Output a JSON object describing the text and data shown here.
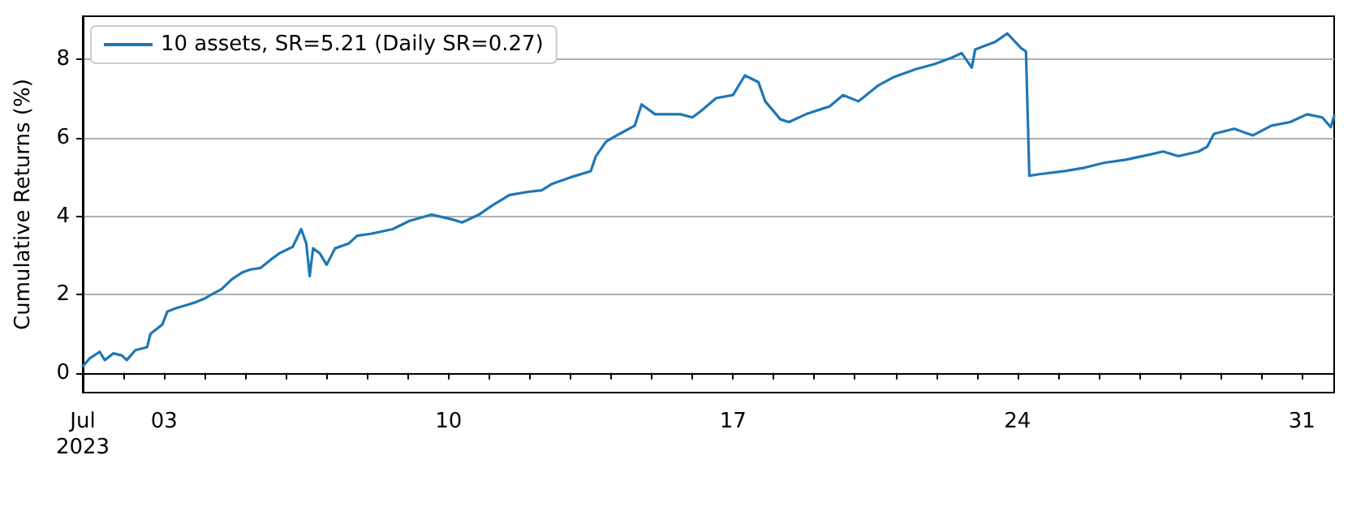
{
  "chart_data": {
    "type": "line",
    "ylabel": "Cumulative Returns (%)",
    "xlim": [
      "2023-07-01",
      "2023-07-31T19:00"
    ],
    "xticks": [
      {
        "value": "2023-07-01",
        "label": "Jul\n2023"
      },
      {
        "value": "2023-07-02",
        "label": null
      },
      {
        "value": "2023-07-03",
        "label": "03"
      },
      {
        "value": "2023-07-04",
        "label": null
      },
      {
        "value": "2023-07-05",
        "label": null
      },
      {
        "value": "2023-07-06",
        "label": null
      },
      {
        "value": "2023-07-07",
        "label": null
      },
      {
        "value": "2023-07-08",
        "label": null
      },
      {
        "value": "2023-07-09",
        "label": null
      },
      {
        "value": "2023-07-10",
        "label": "10"
      },
      {
        "value": "2023-07-11",
        "label": null
      },
      {
        "value": "2023-07-12",
        "label": null
      },
      {
        "value": "2023-07-13",
        "label": null
      },
      {
        "value": "2023-07-14",
        "label": null
      },
      {
        "value": "2023-07-15",
        "label": null
      },
      {
        "value": "2023-07-16",
        "label": null
      },
      {
        "value": "2023-07-17",
        "label": "17"
      },
      {
        "value": "2023-07-18",
        "label": null
      },
      {
        "value": "2023-07-19",
        "label": null
      },
      {
        "value": "2023-07-20",
        "label": null
      },
      {
        "value": "2023-07-21",
        "label": null
      },
      {
        "value": "2023-07-22",
        "label": null
      },
      {
        "value": "2023-07-23",
        "label": null
      },
      {
        "value": "2023-07-24",
        "label": "24"
      },
      {
        "value": "2023-07-25",
        "label": null
      },
      {
        "value": "2023-07-26",
        "label": null
      },
      {
        "value": "2023-07-27",
        "label": null
      },
      {
        "value": "2023-07-28",
        "label": null
      },
      {
        "value": "2023-07-29",
        "label": null
      },
      {
        "value": "2023-07-30",
        "label": null
      },
      {
        "value": "2023-07-31",
        "label": "31"
      }
    ],
    "ylim": [
      -0.5,
      9.1
    ],
    "yticks": [
      0,
      2,
      4,
      6,
      8
    ],
    "grid": "y",
    "legend": "top left",
    "marker": "none",
    "line_style": "solid",
    "x": [
      "2023-07-01T00:00",
      "2023-07-01T04:00",
      "2023-07-01T10:00",
      "2023-07-01T13:00",
      "2023-07-01T18:00",
      "2023-07-01T23:00",
      "2023-07-02T02:00",
      "2023-07-02T07:00",
      "2023-07-02T14:00",
      "2023-07-02T16:00",
      "2023-07-02T23:00",
      "2023-07-03T02:00",
      "2023-07-03T07:00",
      "2023-07-03T13:00",
      "2023-07-03T19:00",
      "2023-07-04T00:00",
      "2023-07-04T04:00",
      "2023-07-04T10:00",
      "2023-07-04T16:00",
      "2023-07-04T22:00",
      "2023-07-05T03:00",
      "2023-07-05T09:00",
      "2023-07-05T15:00",
      "2023-07-05T20:00",
      "2023-07-06T04:00",
      "2023-07-06T09:00",
      "2023-07-06T12:00",
      "2023-07-06T14:00",
      "2023-07-06T16:00",
      "2023-07-06T20:00",
      "2023-07-07T00:00",
      "2023-07-07T05:00",
      "2023-07-07T13:00",
      "2023-07-07T18:00",
      "2023-07-08T02:00",
      "2023-07-08T15:00",
      "2023-07-09T01:00",
      "2023-07-09T14:00",
      "2023-07-10T02:00",
      "2023-07-10T08:00",
      "2023-07-10T18:00",
      "2023-07-11T01:00",
      "2023-07-11T12:00",
      "2023-07-11T23:00",
      "2023-07-12T07:00",
      "2023-07-12T13:00",
      "2023-07-13T00:00",
      "2023-07-13T12:00",
      "2023-07-13T15:00",
      "2023-07-13T21:00",
      "2023-07-14T05:00",
      "2023-07-14T14:00",
      "2023-07-14T18:00",
      "2023-07-15T02:00",
      "2023-07-15T10:00",
      "2023-07-15T17:00",
      "2023-07-16T00:00",
      "2023-07-16T05:00",
      "2023-07-16T14:00",
      "2023-07-17T00:00",
      "2023-07-17T07:00",
      "2023-07-17T15:00",
      "2023-07-17T19:00",
      "2023-07-18T04:00",
      "2023-07-18T09:00",
      "2023-07-18T19:00",
      "2023-07-19T09:00",
      "2023-07-19T17:00",
      "2023-07-20T02:00",
      "2023-07-20T14:00",
      "2023-07-20T23:00",
      "2023-07-21T12:00",
      "2023-07-21T23:00",
      "2023-07-22T09:00",
      "2023-07-22T15:00",
      "2023-07-22T21:00",
      "2023-07-22T23:00",
      "2023-07-23T11:00",
      "2023-07-23T18:00",
      "2023-07-24T02:00",
      "2023-07-24T05:00",
      "2023-07-24T07:00",
      "2023-07-24T13:00",
      "2023-07-25T04:00",
      "2023-07-25T16:00",
      "2023-07-26T03:00",
      "2023-07-26T16:00",
      "2023-07-27T06:00",
      "2023-07-27T14:00",
      "2023-07-27T23:00",
      "2023-07-28T11:00",
      "2023-07-28T16:00",
      "2023-07-28T20:00",
      "2023-07-29T08:00",
      "2023-07-29T19:00",
      "2023-07-30T06:00",
      "2023-07-30T17:00",
      "2023-07-31T03:00",
      "2023-07-31T12:00",
      "2023-07-31T17:00",
      "2023-07-31T19:00"
    ],
    "series": [
      {
        "name": "10 assets, SR=5.21 (Daily SR=0.27)",
        "color": "#1f77b4",
        "values": [
          0.17,
          0.37,
          0.54,
          0.33,
          0.5,
          0.45,
          0.33,
          0.58,
          0.66,
          1.0,
          1.24,
          1.57,
          1.65,
          1.73,
          1.81,
          1.9,
          2.0,
          2.14,
          2.39,
          2.56,
          2.64,
          2.68,
          2.89,
          3.05,
          3.22,
          3.67,
          3.3,
          2.47,
          3.18,
          3.05,
          2.76,
          3.18,
          3.3,
          3.5,
          3.55,
          3.67,
          3.88,
          4.04,
          3.92,
          3.84,
          4.04,
          4.25,
          4.54,
          4.62,
          4.66,
          4.82,
          4.99,
          5.15,
          5.53,
          5.9,
          6.1,
          6.31,
          6.85,
          6.6,
          6.6,
          6.6,
          6.52,
          6.68,
          7.01,
          7.09,
          7.59,
          7.42,
          6.93,
          6.47,
          6.4,
          6.6,
          6.8,
          7.09,
          6.93,
          7.34,
          7.55,
          7.75,
          7.88,
          8.04,
          8.16,
          7.79,
          8.25,
          8.45,
          8.66,
          8.29,
          8.2,
          5.03,
          5.07,
          5.15,
          5.24,
          5.36,
          5.44,
          5.57,
          5.65,
          5.53,
          5.65,
          5.77,
          6.1,
          6.23,
          6.06,
          6.31,
          6.4,
          6.6,
          6.52,
          6.27,
          6.56
        ]
      }
    ]
  }
}
